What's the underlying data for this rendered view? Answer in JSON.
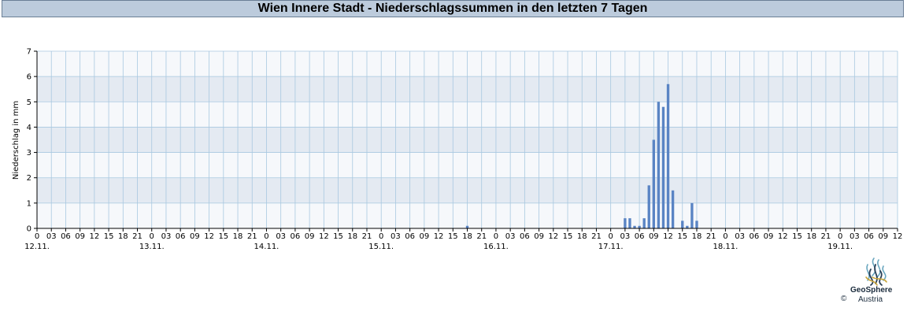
{
  "chart_data": {
    "type": "bar",
    "title": "Wien Innere Stadt - Niederschlagssummen in den letzten 7 Tagen",
    "ylabel": "Niederschlag in mm",
    "xlabel": "",
    "ylim": [
      0,
      7
    ],
    "yticks": [
      "0",
      "1",
      "2",
      "3",
      "4",
      "5",
      "6",
      "7"
    ],
    "hour_labels": [
      "0",
      "03",
      "06",
      "09",
      "12",
      "15",
      "18",
      "21",
      "0",
      "03",
      "06",
      "09",
      "12",
      "15",
      "18",
      "21",
      "0",
      "03",
      "06",
      "09",
      "12",
      "15",
      "18",
      "21",
      "0",
      "03",
      "06",
      "09",
      "12",
      "15",
      "18",
      "21",
      "0",
      "03",
      "06",
      "09",
      "12",
      "15",
      "18",
      "21",
      "0",
      "03",
      "06",
      "09",
      "12",
      "15",
      "18",
      "21",
      "0",
      "03",
      "06",
      "09",
      "12",
      "15",
      "18",
      "21",
      "0",
      "03",
      "06",
      "09",
      "12"
    ],
    "day_labels": [
      "12.11.",
      "13.11.",
      "14.11.",
      "15.11.",
      "16.11.",
      "17.11.",
      "18.11.",
      "19.11."
    ],
    "x_unit": "hours since 12.11. 00:00",
    "x_range": [
      0,
      180
    ],
    "grid": true,
    "series": [
      {
        "color": "#5a84c4",
        "points": [
          {
            "x": 90,
            "y": 0.1
          },
          {
            "x": 123,
            "y": 0.4
          },
          {
            "x": 124,
            "y": 0.4
          },
          {
            "x": 125,
            "y": 0.1
          },
          {
            "x": 126,
            "y": 0.1
          },
          {
            "x": 127,
            "y": 0.4
          },
          {
            "x": 128,
            "y": 1.7
          },
          {
            "x": 129,
            "y": 3.5
          },
          {
            "x": 130,
            "y": 5.0
          },
          {
            "x": 131,
            "y": 4.8
          },
          {
            "x": 132,
            "y": 5.7
          },
          {
            "x": 133,
            "y": 1.5
          },
          {
            "x": 135,
            "y": 0.3
          },
          {
            "x": 136,
            "y": 0.1
          },
          {
            "x": 137,
            "y": 1.0
          },
          {
            "x": 138,
            "y": 0.3
          }
        ]
      }
    ]
  },
  "branding": {
    "logo_line1": "GeoSphere",
    "logo_line2": "Austria",
    "copyright": "©"
  }
}
